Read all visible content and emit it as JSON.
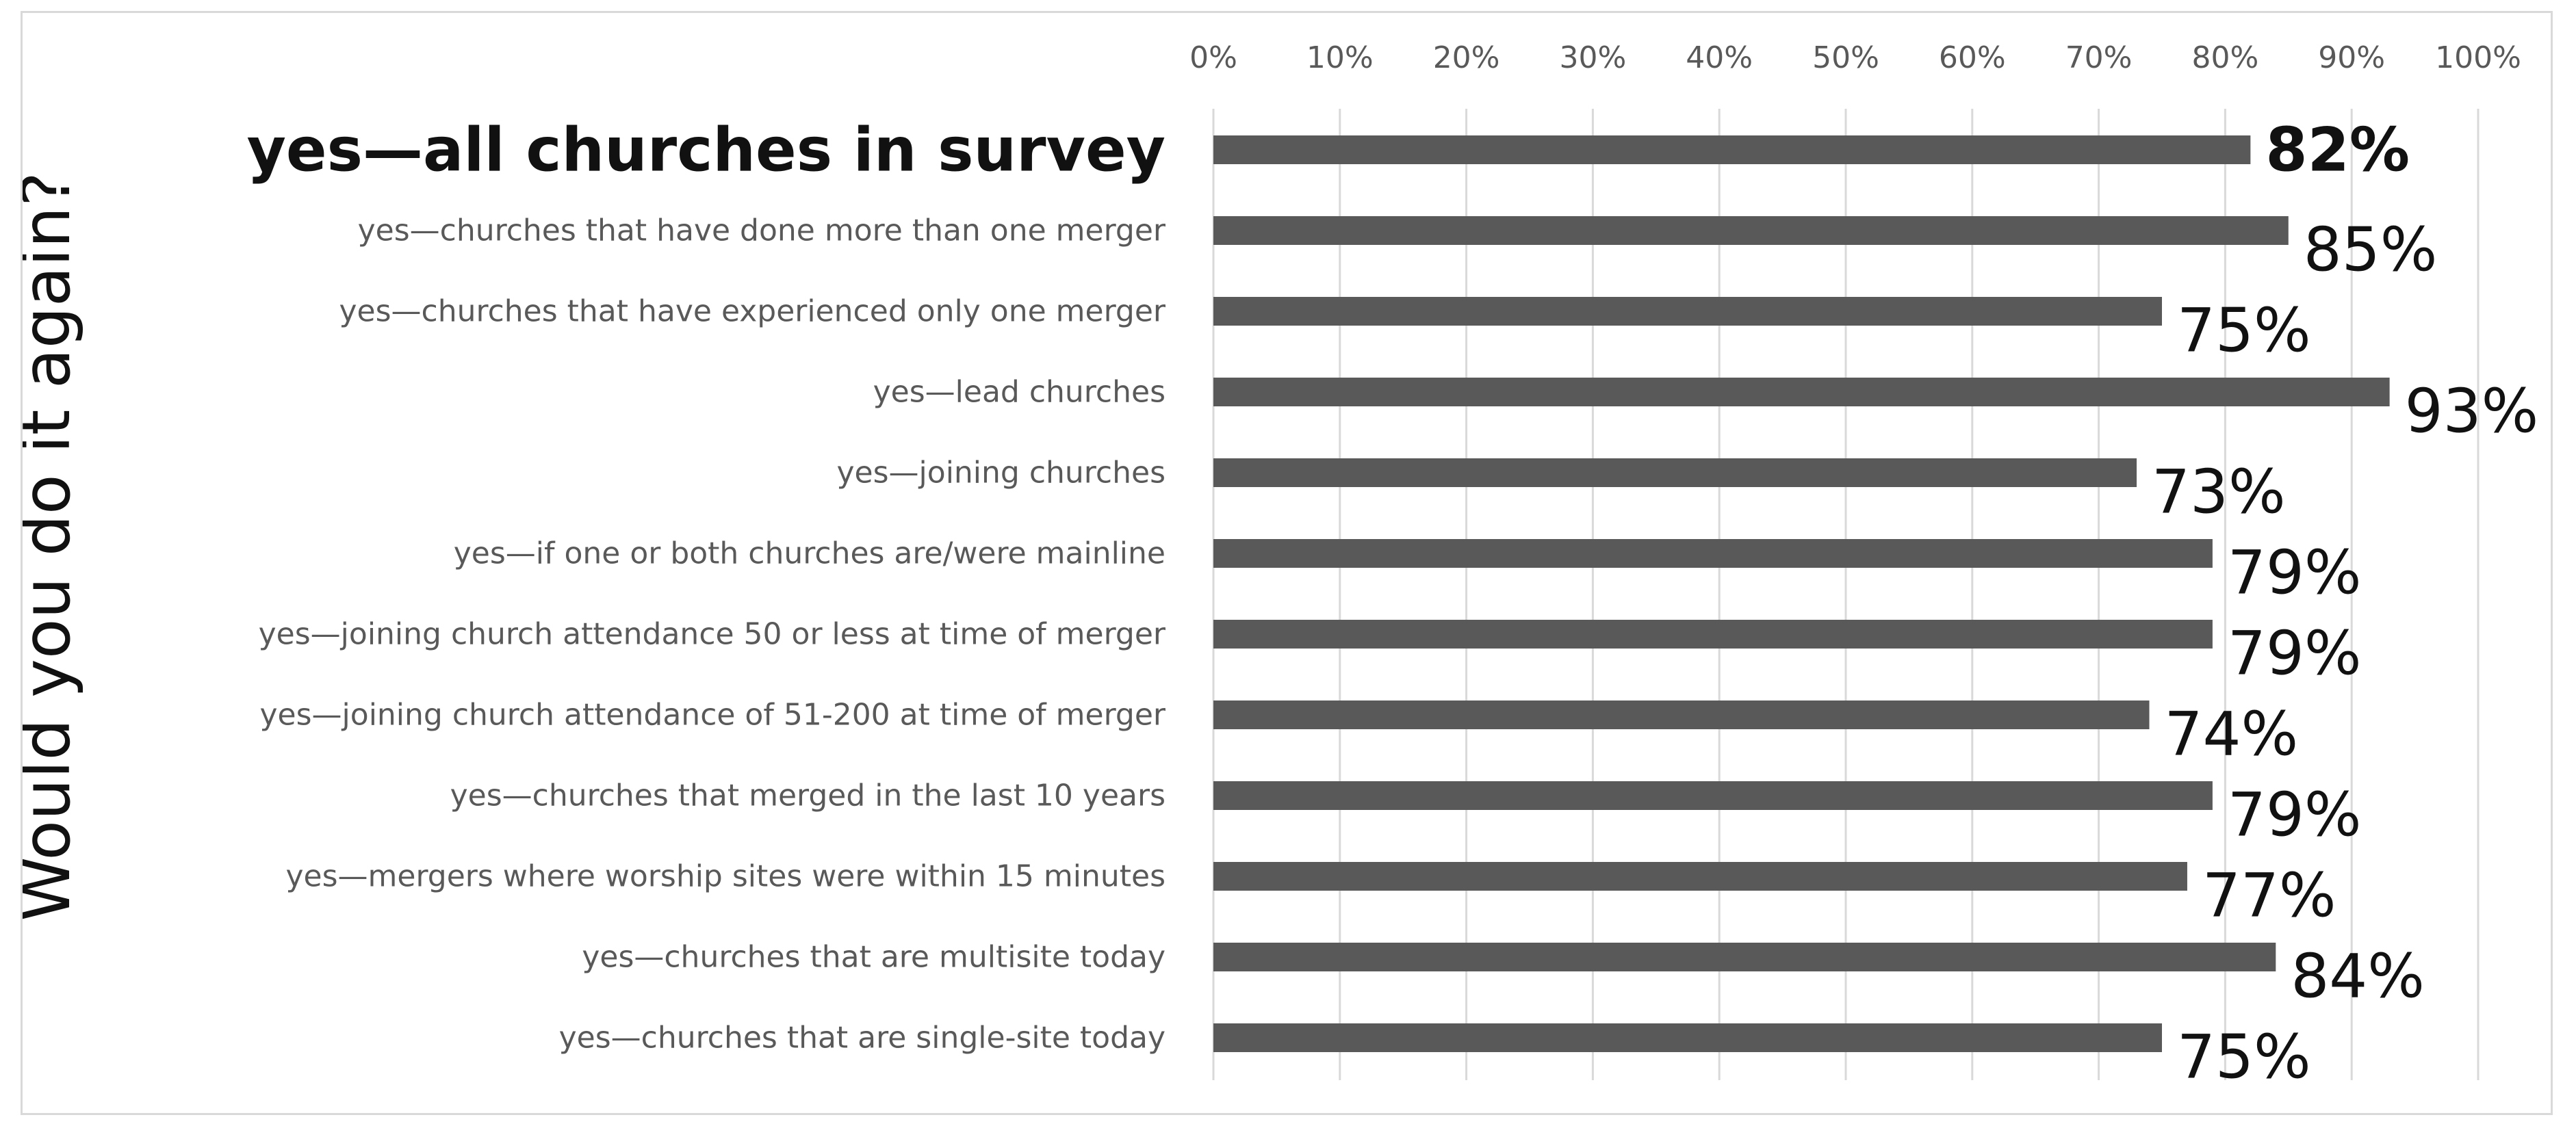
{
  "chart_data": {
    "type": "bar",
    "orientation": "horizontal",
    "ylabel": "Would you do it again?",
    "xlim": [
      0,
      100
    ],
    "x_ticks": [
      "0%",
      "10%",
      "20%",
      "30%",
      "40%",
      "50%",
      "60%",
      "70%",
      "80%",
      "90%",
      "100%"
    ],
    "x_axis_position": "top",
    "grid": true,
    "bar_color": "#595959",
    "categories": [
      "yes—all churches in survey",
      "yes—churches that have done more than one merger",
      "yes—churches that have experienced only one merger",
      "yes—lead churches",
      "yes—joining churches",
      "yes—if one or both churches are/were mainline",
      "yes—joining church attendance 50 or less at time of merger",
      "yes—joining church attendance of 51-200 at time of merger",
      "yes—churches that merged in the last 10 years",
      "yes—mergers where worship sites were within 15 minutes",
      "yes—churches that are multisite today",
      "yes—churches that are single-site today"
    ],
    "values": [
      82,
      85,
      75,
      93,
      73,
      79,
      79,
      74,
      79,
      77,
      84,
      75
    ],
    "value_labels": [
      "82%",
      "85%",
      "75%",
      "93%",
      "73%",
      "79%",
      "79%",
      "74%",
      "79%",
      "77%",
      "84%",
      "75%"
    ],
    "emphasized_category": "yes—all churches in survey"
  }
}
